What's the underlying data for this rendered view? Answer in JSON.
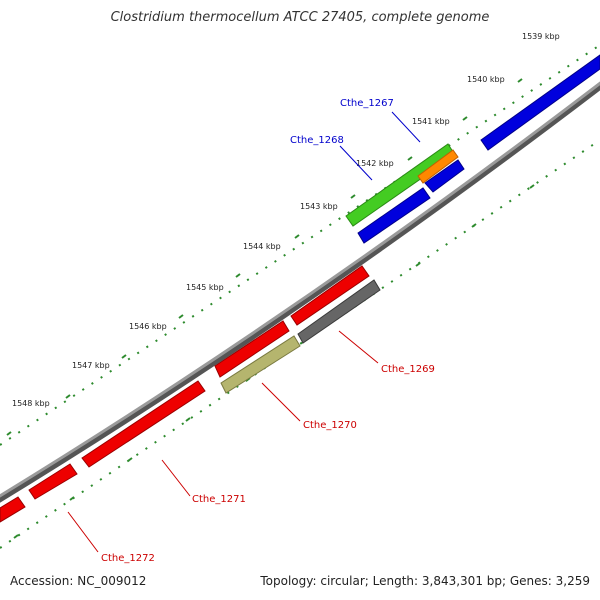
{
  "title": "Clostridium thermocellum ATCC 27405, complete genome",
  "footer": {
    "accession": "Accession: NC_009012",
    "summary": "Topology: circular; Length: 3,843,301 bp; Genes: 3,259"
  },
  "scale_labels": [
    "1539 kbp",
    "1540 kbp",
    "1541 kbp",
    "1542 kbp",
    "1543 kbp",
    "1544 kbp",
    "1545 kbp",
    "1546 kbp",
    "1547 kbp",
    "1548 kbp"
  ],
  "gene_labels": {
    "cthe_1267": "Cthe_1267",
    "cthe_1268": "Cthe_1268",
    "cthe_1269": "Cthe_1269",
    "cthe_1270": "Cthe_1270",
    "cthe_1271": "Cthe_1271",
    "cthe_1272": "Cthe_1272"
  },
  "colors": {
    "backbone": "#8c8c8c",
    "tick_marks": "#2e8b2e",
    "forward_gene": "#0000dd",
    "reverse_gene": "#ee0000",
    "rna_gene": "#44cc22",
    "misc_feature": "#ff8800",
    "pseudo_gene": "#666666",
    "other_feature": "#b5b56e"
  }
}
